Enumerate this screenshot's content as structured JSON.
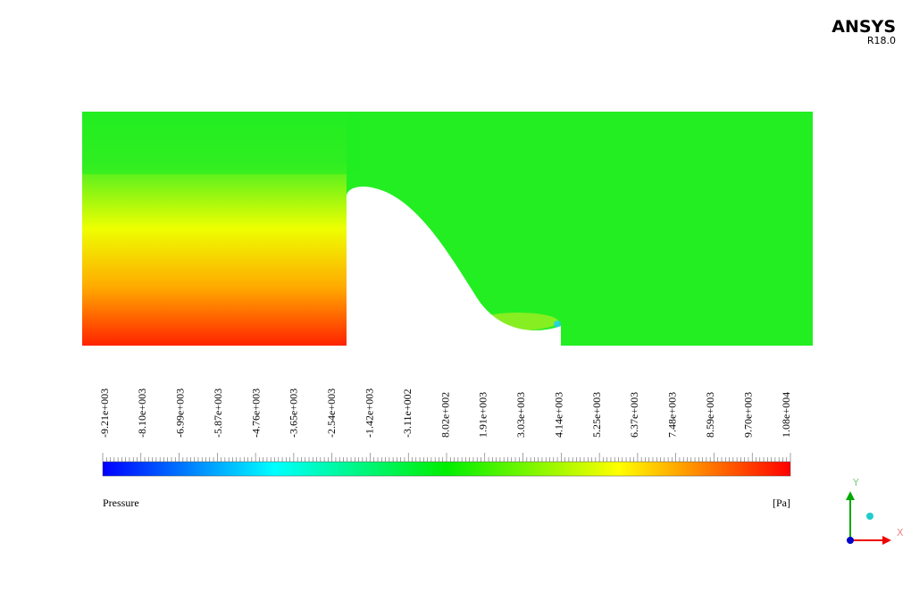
{
  "header": {
    "brand": "ANSYS",
    "version": "R18.0"
  },
  "legend": {
    "variable": "Pressure",
    "unit": "[Pa]",
    "ticks": [
      "-9.21e+003",
      "-8.10e+003",
      "-6.99e+003",
      "-5.87e+003",
      "-4.76e+003",
      "-3.65e+003",
      "-2.54e+003",
      "-1.42e+003",
      "-3.11e+002",
      "8.02e+002",
      "1.91e+003",
      "3.03e+003",
      "4.14e+003",
      "5.25e+003",
      "6.37e+003",
      "7.48e+003",
      "8.59e+003",
      "9.70e+003",
      "1.08e+004"
    ]
  },
  "triad": {
    "y": "Y",
    "x": "X"
  }
}
